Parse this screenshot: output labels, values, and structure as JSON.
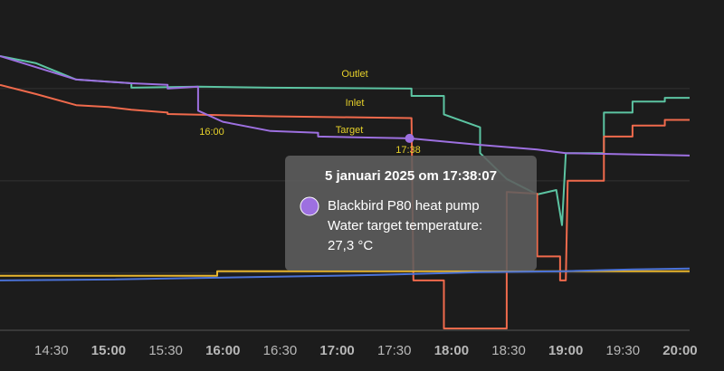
{
  "chart_data": {
    "type": "line",
    "xlim": [
      "14:03",
      "20:05"
    ],
    "xticks": [
      "14:30",
      "15:00",
      "15:30",
      "16:00",
      "16:30",
      "17:00",
      "17:30",
      "18:00",
      "18:30",
      "19:00",
      "19:30",
      "20:00"
    ],
    "ylim": [
      16.9,
      34.8
    ],
    "yticks": [
      20,
      25,
      30
    ],
    "grid": true,
    "series": [
      {
        "name": "Outlet",
        "color": "#5cc4a2",
        "x": [
          "14:03",
          "14:22",
          "14:43",
          "15:12",
          "15:12",
          "15:47",
          "16:25",
          "17:39",
          "17:39",
          "17:56",
          "17:56",
          "18:15",
          "18:15",
          "18:29",
          "18:45",
          "18:55",
          "18:58",
          "19:00",
          "19:20",
          "19:20",
          "19:35",
          "19:35",
          "19:52",
          "19:52",
          "20:05"
        ],
        "values": [
          31.76,
          31.37,
          30.49,
          30.29,
          30.05,
          30.1,
          30.05,
          30.0,
          29.6,
          29.6,
          28.6,
          27.9,
          26.5,
          25.1,
          24.26,
          24.5,
          22.6,
          26.5,
          26.5,
          28.7,
          28.7,
          29.3,
          29.3,
          29.5,
          29.5
        ]
      },
      {
        "name": "Inlet",
        "color": "#f06a4c",
        "x": [
          "14:03",
          "14:22",
          "14:43",
          "15:00",
          "15:12",
          "15:31",
          "15:31",
          "16:25",
          "17:39",
          "17:40",
          "17:56",
          "17:56",
          "18:29",
          "18:29",
          "18:45",
          "18:45",
          "18:57",
          "18:57",
          "19:00",
          "19:01",
          "19:20",
          "19:20",
          "19:35",
          "19:35",
          "19:52",
          "19:52",
          "20:05"
        ],
        "values": [
          30.2,
          29.7,
          29.1,
          29.0,
          28.85,
          28.7,
          28.62,
          28.5,
          28.4,
          19.6,
          19.6,
          17.0,
          17.0,
          24.4,
          24.3,
          20.9,
          20.9,
          19.6,
          19.6,
          25.0,
          25.0,
          27.4,
          27.4,
          28.0,
          28.0,
          28.3,
          28.3
        ]
      },
      {
        "name": "Target",
        "color": "#9d70e0",
        "x": [
          "14:03",
          "14:43",
          "15:12",
          "15:31",
          "15:31",
          "15:47",
          "15:47",
          "16:00",
          "16:25",
          "16:50",
          "16:50",
          "17:38",
          "18:15",
          "18:45",
          "19:00",
          "20:05"
        ],
        "values": [
          31.76,
          30.49,
          30.29,
          30.2,
          30.0,
          30.1,
          28.8,
          28.2,
          27.7,
          27.6,
          27.4,
          27.3,
          26.95,
          26.7,
          26.5,
          26.37
        ]
      },
      {
        "color": "#e9b62e",
        "x": [
          "14:03",
          "15:57",
          "15:57",
          "20:05"
        ],
        "values": [
          19.85,
          19.85,
          20.1,
          20.1
        ]
      },
      {
        "color": "#4a72d8",
        "x": [
          "14:03",
          "15:00",
          "16:25",
          "17:22",
          "18:15",
          "19:00",
          "19:35",
          "20:05"
        ],
        "values": [
          19.6,
          19.65,
          19.8,
          19.9,
          20.05,
          20.1,
          20.2,
          20.25
        ]
      }
    ],
    "annotations": [
      "16:00",
      "17:38"
    ],
    "tooltip": {
      "title": "5 januari 2025 om 17:38:07",
      "entity": "Blackbird P80 heat pump",
      "label": "Water target temperature:",
      "x": "17:38",
      "value": 27.3,
      "value_label": "27,3 °C",
      "color": "#9d70e0"
    }
  }
}
